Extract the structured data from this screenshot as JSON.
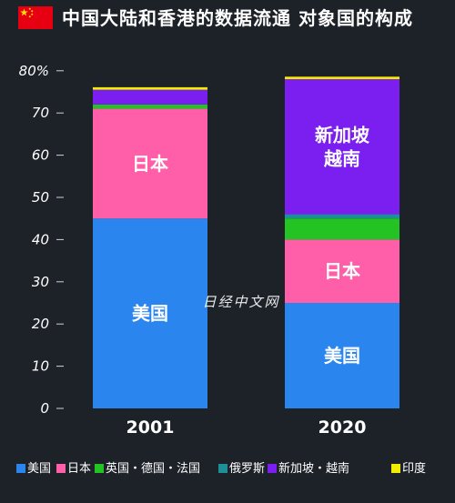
{
  "header": {
    "title": "中国大陆和香港的数据流通 对象国的构成"
  },
  "watermark": "日经中文网",
  "colors": {
    "us": "#2a86ee",
    "jp": "#ff5fa8",
    "eu": "#22c322",
    "ru": "#1f8f97",
    "sg": "#7a1ff0",
    "in": "#f2ec00",
    "background": "#1d2228",
    "flag_red": "#e60012",
    "flag_star": "#ffde00"
  },
  "chart_data": {
    "type": "bar",
    "stacked": true,
    "categories": [
      "2001",
      "2020"
    ],
    "ylim": [
      0,
      80
    ],
    "yticks": [
      0,
      10,
      20,
      30,
      40,
      50,
      60,
      70,
      80
    ],
    "ytick_labels": [
      "0",
      "10",
      "20",
      "30",
      "40",
      "50",
      "60",
      "70",
      "80%"
    ],
    "series": [
      {
        "name": "美国",
        "color_key": "us",
        "values": [
          45,
          25
        ],
        "inbar_labels": [
          "美国",
          "美国"
        ]
      },
      {
        "name": "日本",
        "color_key": "jp",
        "values": [
          26,
          15
        ],
        "inbar_labels": [
          "日本",
          "日本"
        ]
      },
      {
        "name": "英国・德国・法国",
        "color_key": "eu",
        "values": [
          1,
          5
        ],
        "inbar_labels": [
          "",
          ""
        ]
      },
      {
        "name": "俄罗斯",
        "color_key": "ru",
        "values": [
          0,
          1
        ],
        "inbar_labels": [
          "",
          ""
        ]
      },
      {
        "name": "新加坡・越南",
        "color_key": "sg",
        "values": [
          3.5,
          32
        ],
        "inbar_labels": [
          "",
          "新加坡\n越南"
        ]
      },
      {
        "name": "印度",
        "color_key": "in",
        "values": [
          0.6,
          0.6
        ],
        "inbar_labels": [
          "",
          ""
        ]
      }
    ],
    "legend_position": "bottom",
    "grid": false
  }
}
